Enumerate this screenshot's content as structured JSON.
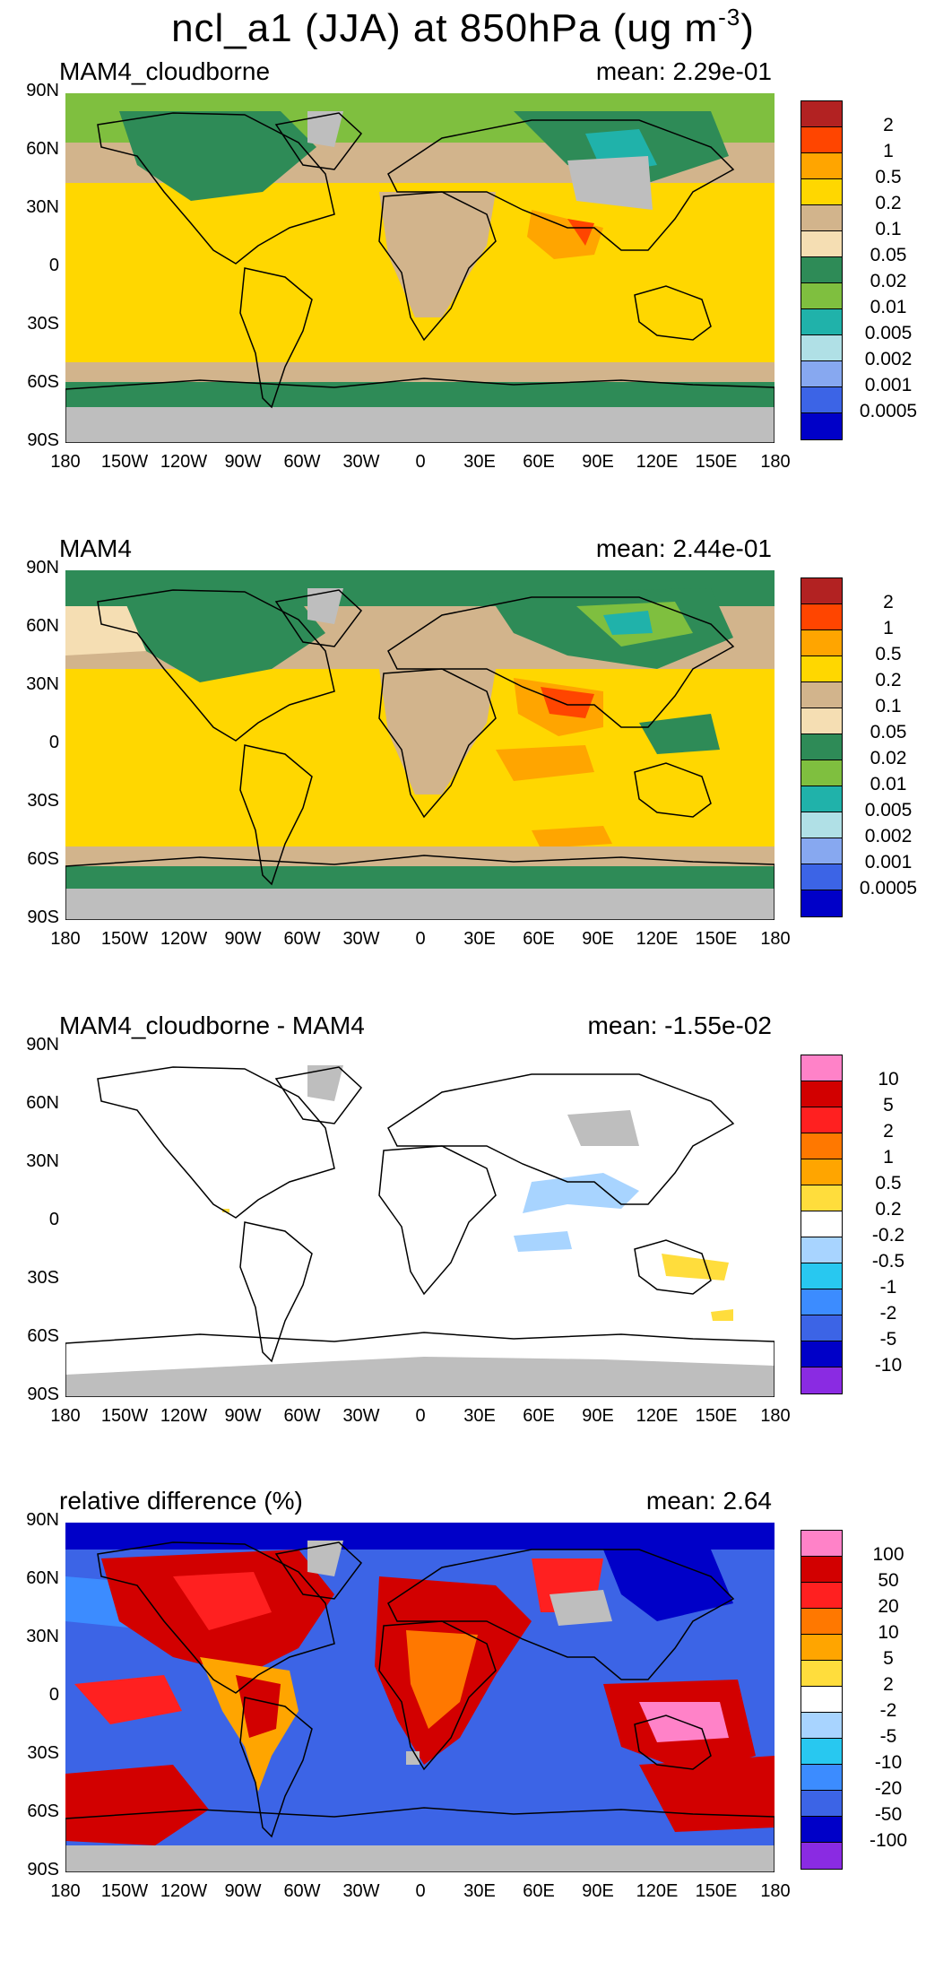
{
  "title": {
    "main": "ncl_a1 (JJA) at 850hPa (ug m",
    "exp": "-3",
    "close": ")"
  },
  "axes": {
    "lat_labels": [
      "90N",
      "60N",
      "30N",
      "0",
      "30S",
      "60S",
      "90S"
    ],
    "lon_labels": [
      "180",
      "150W",
      "120W",
      "90W",
      "60W",
      "30W",
      "0",
      "30E",
      "60E",
      "90E",
      "120E",
      "150E",
      "180"
    ]
  },
  "colors": {
    "missing": "#bebebe",
    "land_line": "#000000"
  },
  "panels": [
    {
      "label": "MAM4_cloudborne",
      "mean": "mean:  2.29e-01",
      "colorbar": {
        "colors": [
          "#b22222",
          "#ff4500",
          "#ffa500",
          "#ffd700",
          "#d2b48c",
          "#f5deb3",
          "#2e8b57",
          "#7fbf3f",
          "#20b2aa",
          "#b0e0e6",
          "#87a8f0",
          "#3c64e6",
          "#0000c8"
        ],
        "labels": [
          "2",
          "1",
          "0.5",
          "0.2",
          "0.1",
          "0.05",
          "0.02",
          "0.01",
          "0.005",
          "0.002",
          "0.001",
          "0.0005"
        ]
      }
    },
    {
      "label": "MAM4",
      "mean": "mean:  2.44e-01",
      "colorbar": {
        "colors": [
          "#b22222",
          "#ff4500",
          "#ffa500",
          "#ffd700",
          "#d2b48c",
          "#f5deb3",
          "#2e8b57",
          "#7fbf3f",
          "#20b2aa",
          "#b0e0e6",
          "#87a8f0",
          "#3c64e6",
          "#0000c8"
        ],
        "labels": [
          "2",
          "1",
          "0.5",
          "0.2",
          "0.1",
          "0.05",
          "0.02",
          "0.01",
          "0.005",
          "0.002",
          "0.001",
          "0.0005"
        ]
      }
    },
    {
      "label": "MAM4_cloudborne - MAM4",
      "mean": "mean:  -1.55e-02",
      "colorbar": {
        "colors": [
          "#ff82c8",
          "#d20000",
          "#ff2020",
          "#ff7800",
          "#ffa500",
          "#ffdd3c",
          "#ffffff",
          "#a8d4ff",
          "#28c8f0",
          "#3c8cff",
          "#3c64e6",
          "#0000c8",
          "#8a2be2"
        ],
        "labels": [
          "10",
          "5",
          "2",
          "1",
          "0.5",
          "0.2",
          "-0.2",
          "-0.5",
          "-1",
          "-2",
          "-5",
          "-10"
        ]
      }
    },
    {
      "label": "relative difference (%)",
      "mean": "mean:   2.64",
      "colorbar": {
        "colors": [
          "#ff82c8",
          "#d20000",
          "#ff2020",
          "#ff7800",
          "#ffa500",
          "#ffdd3c",
          "#ffffff",
          "#a8d4ff",
          "#28c8f0",
          "#3c8cff",
          "#3c64e6",
          "#0000c8",
          "#8a2be2"
        ],
        "labels": [
          "100",
          "50",
          "20",
          "10",
          "5",
          "2",
          "-2",
          "-5",
          "-10",
          "-20",
          "-50",
          "-100"
        ]
      }
    }
  ]
}
